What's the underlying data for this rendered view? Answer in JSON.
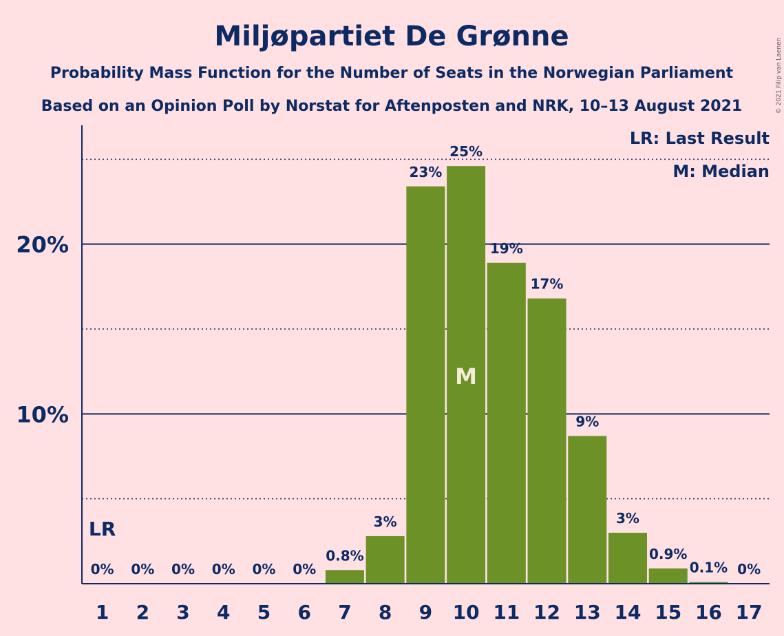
{
  "chart_data": {
    "type": "bar",
    "title": "Miljøpartiet De Grønne",
    "subtitle": "Probability Mass Function for the Number of Seats in the Norwegian Parliament",
    "subtitle2": "Based on an Opinion Poll by Norstat for Aftenposten and NRK, 10–13 August 2021",
    "copyright": "© 2021 Filip van Laenen",
    "categories": [
      "1",
      "2",
      "3",
      "4",
      "5",
      "6",
      "7",
      "8",
      "9",
      "10",
      "11",
      "12",
      "13",
      "14",
      "15",
      "16",
      "17"
    ],
    "values": [
      0,
      0,
      0,
      0,
      0,
      0,
      0.8,
      2.8,
      23.4,
      24.6,
      18.9,
      16.8,
      8.7,
      3.0,
      0.9,
      0.1,
      0
    ],
    "labels": [
      "0%",
      "0%",
      "0%",
      "0%",
      "0%",
      "0%",
      "0.8%",
      "3%",
      "23%",
      "25%",
      "19%",
      "17%",
      "9%",
      "3%",
      "0.9%",
      "0.1%",
      "0%"
    ],
    "ylim": [
      0,
      27
    ],
    "yticks": [
      {
        "value": 10,
        "label": "10%"
      },
      {
        "value": 20,
        "label": "20%"
      }
    ],
    "minor_gridlines": [
      5,
      15,
      25
    ],
    "last_result": {
      "category": "1",
      "label": "LR"
    },
    "median": {
      "category": "10",
      "label": "M"
    },
    "legend": {
      "placement": "top-right",
      "items": [
        "LR: Last Result",
        "M: Median"
      ]
    },
    "colors": {
      "bar": "#6b9127",
      "text": "#0d2a63",
      "background": "#ffe0e3",
      "median_text": "#f4ecd8"
    }
  }
}
